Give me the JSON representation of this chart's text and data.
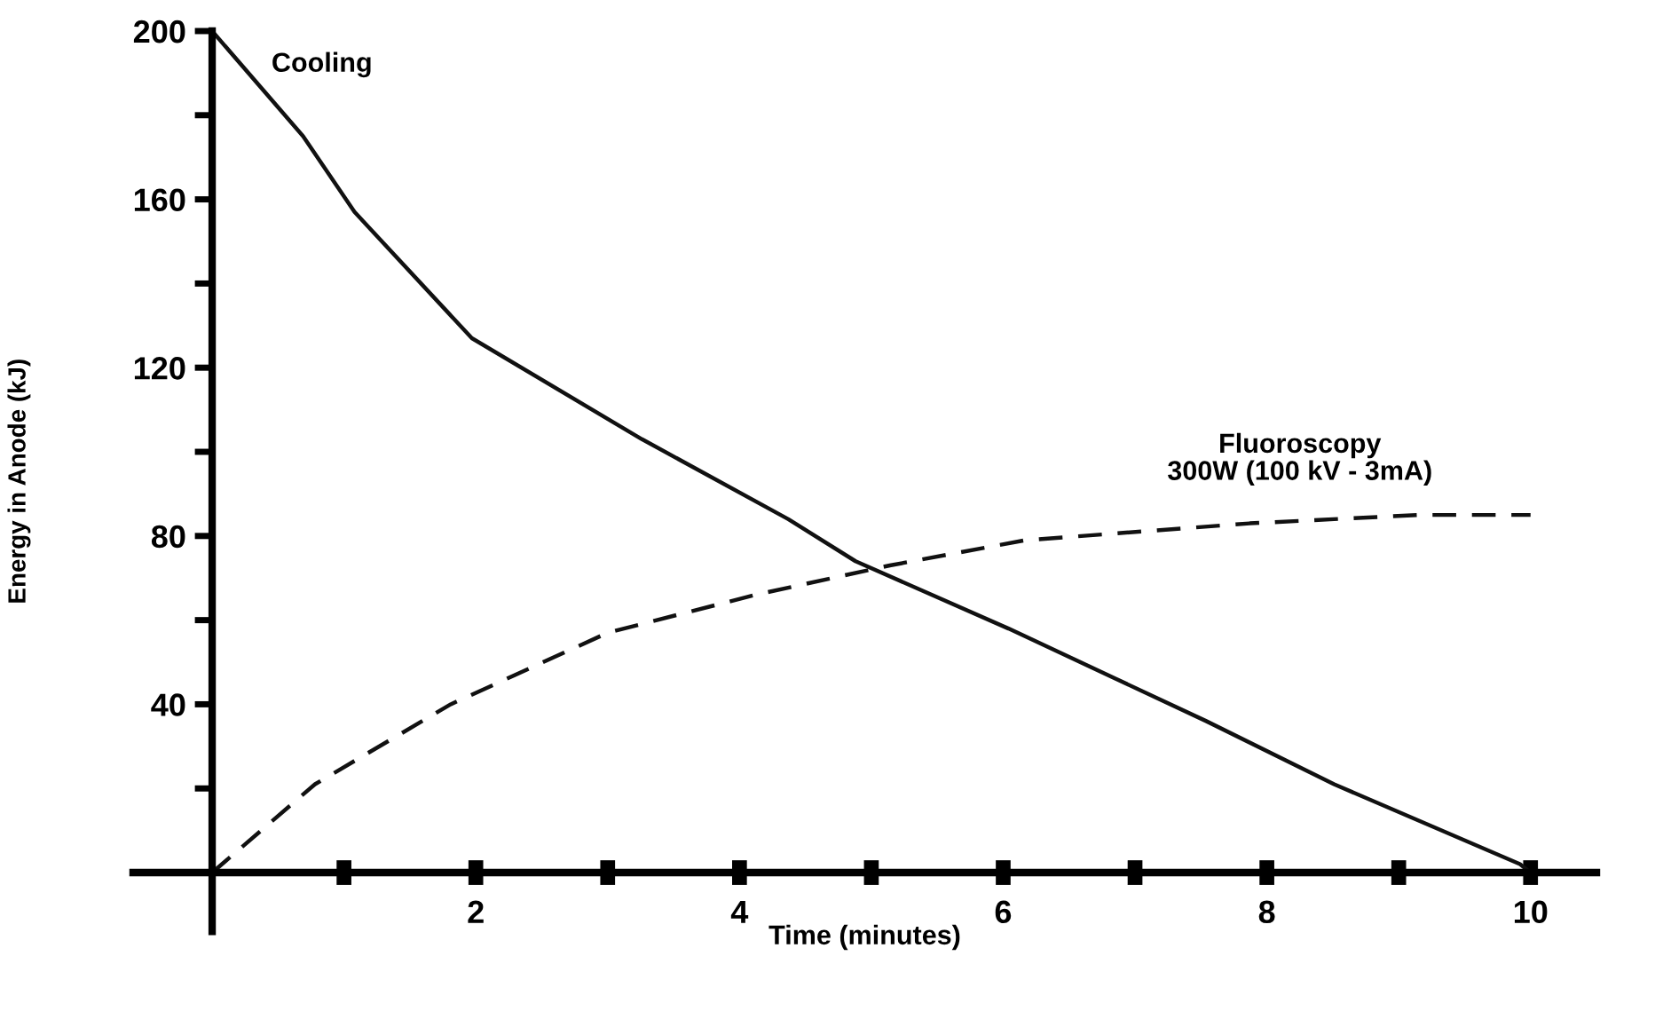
{
  "chart_data": {
    "type": "line",
    "xlabel": "Time (minutes)",
    "ylabel": "Energy in Anode (kJ)",
    "xlim": [
      -0.6,
      10.5
    ],
    "ylim": [
      -14,
      200
    ],
    "xticks": [
      {
        "value": 1,
        "label": null
      },
      2,
      {
        "value": 3,
        "label": null
      },
      4,
      {
        "value": 5,
        "label": null
      },
      6,
      {
        "value": 7,
        "label": null
      },
      8,
      {
        "value": 9,
        "label": null
      },
      10
    ],
    "yticks": [
      {
        "value": 20,
        "label": null
      },
      40,
      {
        "value": 60,
        "label": null
      },
      80,
      {
        "value": 100,
        "label": null
      },
      120,
      {
        "value": 140,
        "label": null
      },
      160,
      {
        "value": 180,
        "label": null
      },
      200
    ],
    "grid": false,
    "legend": false,
    "marker": "none",
    "series": [
      {
        "name": "Cooling",
        "color": "#111111",
        "line_style": "solid",
        "x": [
          0,
          0.69,
          1.08,
          1.97,
          3.26,
          4.37,
          4.88,
          6.04,
          7.54,
          8.51,
          9.92,
          10
        ],
        "values": [
          200,
          175,
          157,
          127,
          103,
          84,
          74,
          58,
          36,
          21,
          2,
          0
        ]
      },
      {
        "name": "Fluoroscopy\n300W (100 kV - 3mA)",
        "color": "#111111",
        "line_style": "dashed",
        "x": [
          0,
          0.78,
          1.81,
          3.0,
          4.12,
          5.14,
          6.17,
          7.87,
          9.15,
          10.0
        ],
        "values": [
          0,
          21,
          40,
          57,
          66,
          73,
          79,
          83,
          85,
          85
        ]
      }
    ]
  }
}
